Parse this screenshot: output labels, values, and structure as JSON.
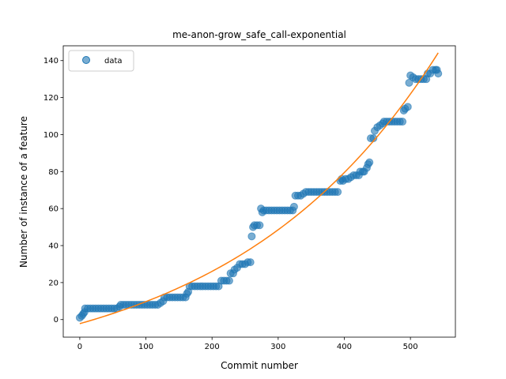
{
  "chart_data": {
    "type": "scatter",
    "title": "me-anon-grow_safe_call-exponential",
    "xlabel": "Commit number",
    "ylabel": "Number of instance of a feature",
    "xlim": [
      -25,
      568
    ],
    "ylim": [
      -9.5,
      148
    ],
    "xticks": [
      0,
      100,
      200,
      300,
      400,
      500
    ],
    "yticks": [
      0,
      20,
      40,
      60,
      80,
      100,
      120,
      140
    ],
    "legend": {
      "placement": "top-left",
      "entries": [
        "data"
      ]
    },
    "colors": {
      "data": "#1f77b4",
      "fit": "#ff7f0e"
    },
    "series": [
      {
        "name": "data",
        "kind": "scatter",
        "points": [
          [
            0,
            1
          ],
          [
            3,
            2
          ],
          [
            5,
            3
          ],
          [
            7,
            4
          ],
          [
            8,
            6
          ],
          [
            12,
            6
          ],
          [
            16,
            6
          ],
          [
            20,
            6
          ],
          [
            24,
            6
          ],
          [
            28,
            6
          ],
          [
            32,
            6
          ],
          [
            36,
            6
          ],
          [
            40,
            6
          ],
          [
            44,
            6
          ],
          [
            48,
            6
          ],
          [
            52,
            6
          ],
          [
            56,
            6
          ],
          [
            60,
            7
          ],
          [
            62,
            8
          ],
          [
            66,
            8
          ],
          [
            70,
            8
          ],
          [
            74,
            8
          ],
          [
            78,
            8
          ],
          [
            82,
            8
          ],
          [
            86,
            8
          ],
          [
            90,
            8
          ],
          [
            94,
            8
          ],
          [
            98,
            8
          ],
          [
            102,
            8
          ],
          [
            106,
            8
          ],
          [
            110,
            8
          ],
          [
            114,
            8
          ],
          [
            118,
            8
          ],
          [
            122,
            9
          ],
          [
            126,
            10
          ],
          [
            128,
            12
          ],
          [
            132,
            12
          ],
          [
            136,
            12
          ],
          [
            140,
            12
          ],
          [
            144,
            12
          ],
          [
            148,
            12
          ],
          [
            152,
            12
          ],
          [
            156,
            12
          ],
          [
            160,
            12
          ],
          [
            162,
            14
          ],
          [
            164,
            15
          ],
          [
            166,
            18
          ],
          [
            170,
            18
          ],
          [
            174,
            18
          ],
          [
            178,
            18
          ],
          [
            182,
            18
          ],
          [
            186,
            18
          ],
          [
            190,
            18
          ],
          [
            194,
            18
          ],
          [
            198,
            18
          ],
          [
            202,
            18
          ],
          [
            206,
            18
          ],
          [
            210,
            18
          ],
          [
            214,
            21
          ],
          [
            218,
            21
          ],
          [
            222,
            21
          ],
          [
            226,
            21
          ],
          [
            228,
            25
          ],
          [
            232,
            25
          ],
          [
            234,
            27
          ],
          [
            238,
            28
          ],
          [
            242,
            30
          ],
          [
            246,
            30
          ],
          [
            250,
            30
          ],
          [
            254,
            31
          ],
          [
            258,
            31
          ],
          [
            260,
            45
          ],
          [
            262,
            50
          ],
          [
            264,
            51
          ],
          [
            268,
            51
          ],
          [
            272,
            51
          ],
          [
            274,
            60
          ],
          [
            276,
            58
          ],
          [
            278,
            59
          ],
          [
            282,
            59
          ],
          [
            286,
            59
          ],
          [
            290,
            59
          ],
          [
            294,
            59
          ],
          [
            298,
            59
          ],
          [
            302,
            59
          ],
          [
            306,
            59
          ],
          [
            310,
            59
          ],
          [
            314,
            59
          ],
          [
            318,
            59
          ],
          [
            322,
            59
          ],
          [
            324,
            61
          ],
          [
            326,
            67
          ],
          [
            330,
            67
          ],
          [
            334,
            67
          ],
          [
            338,
            68
          ],
          [
            342,
            69
          ],
          [
            346,
            69
          ],
          [
            350,
            69
          ],
          [
            354,
            69
          ],
          [
            358,
            69
          ],
          [
            362,
            69
          ],
          [
            366,
            69
          ],
          [
            370,
            69
          ],
          [
            374,
            69
          ],
          [
            378,
            69
          ],
          [
            382,
            69
          ],
          [
            386,
            69
          ],
          [
            390,
            69
          ],
          [
            394,
            75
          ],
          [
            396,
            76
          ],
          [
            398,
            75
          ],
          [
            402,
            76
          ],
          [
            406,
            76
          ],
          [
            410,
            77
          ],
          [
            414,
            78
          ],
          [
            418,
            78
          ],
          [
            422,
            78
          ],
          [
            424,
            80
          ],
          [
            428,
            80
          ],
          [
            430,
            80
          ],
          [
            434,
            82
          ],
          [
            436,
            84
          ],
          [
            438,
            85
          ],
          [
            440,
            98
          ],
          [
            444,
            98
          ],
          [
            446,
            102
          ],
          [
            450,
            104
          ],
          [
            454,
            105
          ],
          [
            458,
            106
          ],
          [
            460,
            107
          ],
          [
            464,
            107
          ],
          [
            468,
            107
          ],
          [
            472,
            107
          ],
          [
            476,
            107
          ],
          [
            480,
            107
          ],
          [
            484,
            107
          ],
          [
            488,
            107
          ],
          [
            490,
            113
          ],
          [
            492,
            114
          ],
          [
            496,
            115
          ],
          [
            498,
            128
          ],
          [
            500,
            132
          ],
          [
            504,
            131
          ],
          [
            508,
            130
          ],
          [
            512,
            130
          ],
          [
            516,
            130
          ],
          [
            520,
            130
          ],
          [
            524,
            130
          ],
          [
            526,
            133
          ],
          [
            530,
            133
          ],
          [
            534,
            135
          ],
          [
            538,
            135
          ],
          [
            540,
            135
          ],
          [
            542,
            133
          ]
        ]
      },
      {
        "name": "",
        "kind": "line",
        "model": "exponential",
        "params": {
          "a": 31.8,
          "b": 0.00318,
          "c": -34.0
        },
        "x_range": [
          0,
          542
        ]
      }
    ]
  }
}
